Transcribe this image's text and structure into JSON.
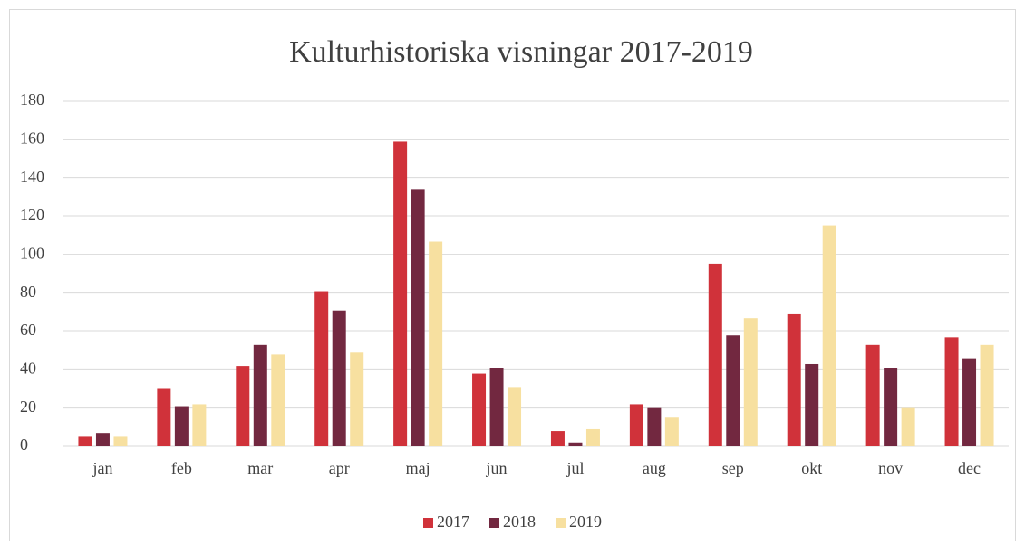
{
  "chart_data": {
    "type": "bar",
    "title": "Kulturhistoriska visningar 2017-2019",
    "categories": [
      "jan",
      "feb",
      "mar",
      "apr",
      "maj",
      "jun",
      "jul",
      "aug",
      "sep",
      "okt",
      "nov",
      "dec"
    ],
    "series": [
      {
        "name": "2017",
        "color": "#d0323a",
        "values": [
          5,
          30,
          42,
          81,
          159,
          38,
          8,
          22,
          95,
          69,
          53,
          57
        ]
      },
      {
        "name": "2018",
        "color": "#722840",
        "values": [
          7,
          21,
          53,
          71,
          134,
          41,
          2,
          20,
          58,
          43,
          41,
          46
        ]
      },
      {
        "name": "2019",
        "color": "#f7e0a0",
        "values": [
          5,
          22,
          48,
          49,
          107,
          31,
          9,
          15,
          67,
          115,
          20,
          53
        ]
      }
    ],
    "ylim": [
      0,
      180
    ],
    "yticks": [
      0,
      20,
      40,
      60,
      80,
      100,
      120,
      140,
      160,
      180
    ],
    "grid": true,
    "legend": "bottom"
  }
}
